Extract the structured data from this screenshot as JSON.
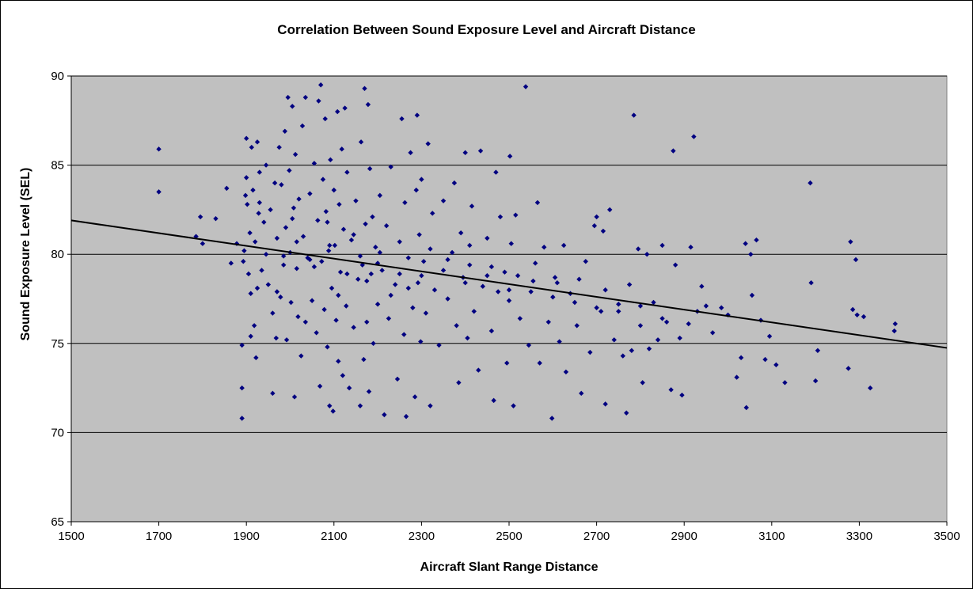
{
  "chart_data": {
    "type": "scatter",
    "title": "Correlation Between Sound Exposure Level and Aircraft Distance",
    "xlabel": "Aircraft Slant Range Distance",
    "ylabel": "Sound Exposure Level (SEL)",
    "xlim": [
      1500,
      3500
    ],
    "ylim": [
      65,
      90
    ],
    "x_ticks": [
      1500,
      1700,
      1900,
      2100,
      2300,
      2500,
      2700,
      2900,
      3100,
      3300,
      3500
    ],
    "y_ticks": [
      65,
      70,
      75,
      80,
      85,
      90
    ],
    "grid": "horizontal",
    "plot_background": "#c0c0c0",
    "marker_color": "#000080",
    "trendline": {
      "x": [
        1500,
        3500
      ],
      "y": [
        81.9,
        74.75
      ],
      "color": "#000000"
    },
    "series": [
      {
        "points": [
          [
            1700,
            85.9
          ],
          [
            1700,
            83.5
          ],
          [
            1785,
            81.0
          ],
          [
            1795,
            82.1
          ],
          [
            1800,
            80.6
          ],
          [
            1830,
            82.0
          ],
          [
            1855,
            83.7
          ],
          [
            1865,
            79.5
          ],
          [
            1878,
            80.6
          ],
          [
            1890,
            70.8
          ],
          [
            1890,
            72.5
          ],
          [
            1890,
            74.9
          ],
          [
            1893,
            79.6
          ],
          [
            1895,
            80.2
          ],
          [
            1898,
            83.3
          ],
          [
            1900,
            86.5
          ],
          [
            1900,
            84.3
          ],
          [
            1902,
            82.8
          ],
          [
            1905,
            78.9
          ],
          [
            1908,
            81.2
          ],
          [
            1910,
            75.4
          ],
          [
            1912,
            86.0
          ],
          [
            1915,
            83.6
          ],
          [
            1918,
            76.0
          ],
          [
            1920,
            80.7
          ],
          [
            1922,
            74.2
          ],
          [
            1925,
            86.3
          ],
          [
            1928,
            82.3
          ],
          [
            1930,
            84.6
          ],
          [
            1935,
            79.1
          ],
          [
            1940,
            81.8
          ],
          [
            1945,
            85.0
          ],
          [
            1950,
            78.3
          ],
          [
            1955,
            82.5
          ],
          [
            1960,
            72.2
          ],
          [
            1965,
            84.0
          ],
          [
            1968,
            75.3
          ],
          [
            1970,
            80.9
          ],
          [
            1975,
            86.0
          ],
          [
            1978,
            77.6
          ],
          [
            1980,
            83.9
          ],
          [
            1985,
            79.4
          ],
          [
            1988,
            86.9
          ],
          [
            1990,
            81.5
          ],
          [
            1992,
            75.2
          ],
          [
            1995,
            88.8
          ],
          [
            1998,
            84.7
          ],
          [
            2000,
            80.1
          ],
          [
            2002,
            77.3
          ],
          [
            2005,
            88.3
          ],
          [
            2008,
            82.6
          ],
          [
            2010,
            72.0
          ],
          [
            2012,
            85.6
          ],
          [
            2015,
            79.2
          ],
          [
            2018,
            76.5
          ],
          [
            2020,
            83.1
          ],
          [
            2025,
            74.3
          ],
          [
            2028,
            87.2
          ],
          [
            2030,
            81.0
          ],
          [
            2035,
            88.8
          ],
          [
            2040,
            79.8
          ],
          [
            2045,
            83.4
          ],
          [
            2050,
            77.4
          ],
          [
            2055,
            85.1
          ],
          [
            2060,
            75.6
          ],
          [
            2063,
            81.9
          ],
          [
            2065,
            88.6
          ],
          [
            2068,
            72.6
          ],
          [
            2070,
            89.5
          ],
          [
            2072,
            79.6
          ],
          [
            2075,
            84.2
          ],
          [
            2078,
            76.9
          ],
          [
            2080,
            87.6
          ],
          [
            2082,
            82.4
          ],
          [
            2085,
            74.8
          ],
          [
            2088,
            80.2
          ],
          [
            2090,
            71.5
          ],
          [
            2092,
            85.3
          ],
          [
            2095,
            78.1
          ],
          [
            2098,
            71.2
          ],
          [
            2100,
            83.6
          ],
          [
            2102,
            80.5
          ],
          [
            2105,
            76.3
          ],
          [
            2108,
            88.0
          ],
          [
            2110,
            74.0
          ],
          [
            2112,
            82.8
          ],
          [
            2115,
            79.0
          ],
          [
            2118,
            85.9
          ],
          [
            2120,
            73.2
          ],
          [
            2122,
            81.4
          ],
          [
            2125,
            88.2
          ],
          [
            2128,
            77.1
          ],
          [
            2130,
            84.6
          ],
          [
            2135,
            72.5
          ],
          [
            2140,
            80.8
          ],
          [
            2145,
            75.9
          ],
          [
            2150,
            83.0
          ],
          [
            2155,
            78.6
          ],
          [
            2160,
            71.5
          ],
          [
            2162,
            86.3
          ],
          [
            2165,
            79.4
          ],
          [
            2168,
            74.1
          ],
          [
            2170,
            89.3
          ],
          [
            2172,
            81.7
          ],
          [
            2175,
            76.2
          ],
          [
            2178,
            88.4
          ],
          [
            2180,
            72.3
          ],
          [
            2182,
            84.8
          ],
          [
            2185,
            78.9
          ],
          [
            2188,
            82.1
          ],
          [
            2190,
            75.0
          ],
          [
            2195,
            80.4
          ],
          [
            2200,
            77.2
          ],
          [
            2205,
            83.3
          ],
          [
            2210,
            79.1
          ],
          [
            2215,
            71.0
          ],
          [
            2220,
            81.6
          ],
          [
            2225,
            76.4
          ],
          [
            2230,
            84.9
          ],
          [
            2240,
            78.3
          ],
          [
            2245,
            73.0
          ],
          [
            2250,
            80.7
          ],
          [
            2255,
            87.6
          ],
          [
            2260,
            75.5
          ],
          [
            2262,
            82.9
          ],
          [
            2265,
            70.9
          ],
          [
            2270,
            79.8
          ],
          [
            2275,
            85.7
          ],
          [
            2280,
            77.0
          ],
          [
            2285,
            72.0
          ],
          [
            2288,
            83.6
          ],
          [
            2290,
            87.8
          ],
          [
            2292,
            78.4
          ],
          [
            2295,
            81.1
          ],
          [
            2298,
            75.1
          ],
          [
            2300,
            84.2
          ],
          [
            2305,
            79.6
          ],
          [
            2310,
            76.7
          ],
          [
            2315,
            86.2
          ],
          [
            2320,
            71.5
          ],
          [
            2325,
            82.3
          ],
          [
            2330,
            78.0
          ],
          [
            2340,
            74.9
          ],
          [
            2350,
            83.0
          ],
          [
            2360,
            77.5
          ],
          [
            2370,
            80.1
          ],
          [
            2375,
            84.0
          ],
          [
            2380,
            76.0
          ],
          [
            2385,
            72.8
          ],
          [
            2390,
            81.2
          ],
          [
            2395,
            78.7
          ],
          [
            2400,
            85.7
          ],
          [
            2405,
            75.3
          ],
          [
            2410,
            79.4
          ],
          [
            2415,
            82.7
          ],
          [
            2420,
            76.8
          ],
          [
            2430,
            73.5
          ],
          [
            2435,
            85.8
          ],
          [
            2440,
            78.2
          ],
          [
            2450,
            80.9
          ],
          [
            2460,
            75.7
          ],
          [
            2465,
            71.8
          ],
          [
            2470,
            84.6
          ],
          [
            2475,
            77.9
          ],
          [
            2480,
            82.1
          ],
          [
            2490,
            79.0
          ],
          [
            2495,
            73.9
          ],
          [
            2500,
            77.4
          ],
          [
            2502,
            85.5
          ],
          [
            2505,
            80.6
          ],
          [
            2510,
            71.5
          ],
          [
            2515,
            82.2
          ],
          [
            2525,
            76.4
          ],
          [
            2538,
            89.4
          ],
          [
            2545,
            74.9
          ],
          [
            2555,
            78.5
          ],
          [
            2565,
            82.9
          ],
          [
            2570,
            73.9
          ],
          [
            2580,
            80.4
          ],
          [
            2590,
            76.2
          ],
          [
            2598,
            70.8
          ],
          [
            2605,
            78.7
          ],
          [
            2615,
            75.1
          ],
          [
            2625,
            80.5
          ],
          [
            2630,
            73.4
          ],
          [
            2640,
            77.8
          ],
          [
            2655,
            76.0
          ],
          [
            2665,
            72.2
          ],
          [
            2675,
            79.6
          ],
          [
            2685,
            74.5
          ],
          [
            2695,
            81.6
          ],
          [
            2700,
            82.1
          ],
          [
            2710,
            76.8
          ],
          [
            2715,
            81.3
          ],
          [
            2720,
            71.6
          ],
          [
            2730,
            82.5
          ],
          [
            2740,
            75.2
          ],
          [
            2750,
            77.2
          ],
          [
            2760,
            74.3
          ],
          [
            2768,
            71.1
          ],
          [
            2775,
            78.3
          ],
          [
            2780,
            74.6
          ],
          [
            2785,
            87.8
          ],
          [
            2795,
            80.3
          ],
          [
            2800,
            76.0
          ],
          [
            2805,
            72.8
          ],
          [
            2815,
            80.0
          ],
          [
            2820,
            74.7
          ],
          [
            2830,
            77.3
          ],
          [
            2840,
            75.2
          ],
          [
            2850,
            80.5
          ],
          [
            2860,
            76.2
          ],
          [
            2870,
            72.4
          ],
          [
            2875,
            85.8
          ],
          [
            2880,
            79.4
          ],
          [
            2890,
            75.3
          ],
          [
            2895,
            72.1
          ],
          [
            2910,
            76.1
          ],
          [
            2915,
            80.4
          ],
          [
            2922,
            86.6
          ],
          [
            2930,
            76.8
          ],
          [
            2940,
            78.2
          ],
          [
            2950,
            77.1
          ],
          [
            2965,
            75.6
          ],
          [
            2985,
            77.0
          ],
          [
            3000,
            76.6
          ],
          [
            3020,
            73.1
          ],
          [
            3030,
            74.2
          ],
          [
            3040,
            80.6
          ],
          [
            3042,
            71.4
          ],
          [
            3052,
            80.0
          ],
          [
            3055,
            77.7
          ],
          [
            3065,
            80.8
          ],
          [
            3075,
            76.3
          ],
          [
            3085,
            74.1
          ],
          [
            3095,
            75.4
          ],
          [
            3110,
            73.8
          ],
          [
            3130,
            72.8
          ],
          [
            3188,
            84.0
          ],
          [
            3190,
            78.4
          ],
          [
            3200,
            72.9
          ],
          [
            3205,
            74.6
          ],
          [
            3275,
            73.6
          ],
          [
            3280,
            80.7
          ],
          [
            3285,
            76.9
          ],
          [
            3292,
            79.7
          ],
          [
            3295,
            76.6
          ],
          [
            3310,
            76.5
          ],
          [
            3325,
            72.5
          ],
          [
            3380,
            75.7
          ],
          [
            3382,
            76.1
          ],
          [
            1910,
            77.8
          ],
          [
            1925,
            78.1
          ],
          [
            1960,
            76.7
          ],
          [
            1985,
            79.9
          ],
          [
            2015,
            80.7
          ],
          [
            2045,
            79.7
          ],
          [
            2090,
            80.5
          ],
          [
            2130,
            78.9
          ],
          [
            2160,
            79.9
          ],
          [
            2200,
            79.5
          ],
          [
            2250,
            78.9
          ],
          [
            2300,
            78.8
          ],
          [
            2350,
            79.1
          ],
          [
            2400,
            78.4
          ],
          [
            2450,
            78.8
          ],
          [
            2500,
            78.0
          ],
          [
            2550,
            77.9
          ],
          [
            2600,
            77.6
          ],
          [
            2650,
            77.3
          ],
          [
            2700,
            77.0
          ],
          [
            2750,
            76.8
          ],
          [
            2850,
            76.4
          ],
          [
            1930,
            82.9
          ],
          [
            1945,
            80.0
          ],
          [
            1970,
            77.9
          ],
          [
            2005,
            82.0
          ],
          [
            2035,
            76.2
          ],
          [
            2055,
            79.3
          ],
          [
            2085,
            81.8
          ],
          [
            2110,
            77.7
          ],
          [
            2145,
            81.1
          ],
          [
            2175,
            78.5
          ],
          [
            2205,
            80.1
          ],
          [
            2230,
            77.7
          ],
          [
            2270,
            78.1
          ],
          [
            2320,
            80.3
          ],
          [
            2360,
            79.7
          ],
          [
            2410,
            80.5
          ],
          [
            2460,
            79.3
          ],
          [
            2520,
            78.8
          ],
          [
            2560,
            79.5
          ],
          [
            2610,
            78.4
          ],
          [
            2660,
            78.6
          ],
          [
            2720,
            78.0
          ],
          [
            2800,
            77.1
          ]
        ]
      }
    ]
  }
}
